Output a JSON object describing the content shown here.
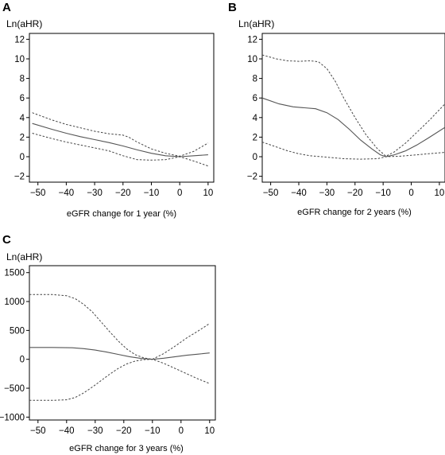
{
  "chart_data": [
    {
      "type": "line",
      "panel_label": "A",
      "ylabel": "Ln(aHR)",
      "xlabel": "eGFR change for 1 year (%)",
      "xlim": [
        -53,
        12
      ],
      "ylim": [
        -2.6,
        12.6
      ],
      "xticks": [
        -50,
        -40,
        -30,
        -20,
        -10,
        0,
        10
      ],
      "yticks": [
        -2,
        0,
        2,
        4,
        6,
        8,
        10,
        12
      ],
      "tick_labels_x": [
        "−50",
        "−40",
        "−30",
        "−20",
        "−10",
        "0",
        "10"
      ],
      "tick_labels_y": [
        "−2",
        "0",
        "2",
        "4",
        "6",
        "8",
        "10",
        "12"
      ],
      "series": [
        {
          "style": "solid",
          "x": [
            -52,
            -45,
            -40,
            -35,
            -30,
            -25,
            -20,
            -15,
            -10,
            -5,
            0,
            5,
            10
          ],
          "y": [
            3.4,
            2.8,
            2.4,
            2.05,
            1.75,
            1.45,
            1.1,
            0.7,
            0.35,
            0.1,
            0.0,
            0.1,
            0.2
          ]
        },
        {
          "style": "dotted",
          "x": [
            -52,
            -45,
            -40,
            -35,
            -30,
            -25,
            -20,
            -18,
            -15,
            -10,
            -5,
            0,
            5,
            10
          ],
          "y": [
            4.5,
            3.75,
            3.3,
            2.95,
            2.6,
            2.35,
            2.2,
            2.0,
            1.5,
            0.8,
            0.35,
            0.05,
            0.55,
            1.4
          ]
        },
        {
          "style": "dotted",
          "x": [
            -52,
            -45,
            -40,
            -35,
            -30,
            -25,
            -20,
            -15,
            -10,
            -5,
            0,
            5,
            10
          ],
          "y": [
            2.4,
            1.85,
            1.5,
            1.2,
            0.9,
            0.6,
            0.1,
            -0.3,
            -0.35,
            -0.3,
            0.0,
            -0.45,
            -0.95
          ]
        }
      ]
    },
    {
      "type": "line",
      "panel_label": "B",
      "ylabel": "Ln(aHR)",
      "xlabel": "eGFR change for 2 years (%)",
      "xlim": [
        -53,
        12
      ],
      "ylim": [
        -2.6,
        12.6
      ],
      "xticks": [
        -50,
        -40,
        -30,
        -20,
        -10,
        0,
        10
      ],
      "yticks": [
        -2,
        0,
        2,
        4,
        6,
        8,
        10,
        12
      ],
      "tick_labels_x": [
        "−50",
        "−40",
        "−30",
        "−20",
        "−10",
        "0",
        "10"
      ],
      "tick_labels_y": [
        "−2",
        "0",
        "2",
        "4",
        "6",
        "8",
        "10",
        "12"
      ],
      "series": [
        {
          "style": "solid",
          "x": [
            -53,
            -47,
            -42,
            -38,
            -34,
            -30,
            -26,
            -22,
            -18,
            -14,
            -11,
            -9,
            -6,
            -2,
            2,
            6,
            12
          ],
          "y": [
            6.0,
            5.4,
            5.1,
            5.0,
            4.9,
            4.5,
            3.8,
            2.8,
            1.7,
            0.8,
            0.2,
            0.0,
            0.2,
            0.6,
            1.2,
            1.9,
            3.0
          ]
        },
        {
          "style": "dotted",
          "x": [
            -53,
            -48,
            -44,
            -40,
            -36,
            -33,
            -30,
            -27,
            -24,
            -20,
            -16,
            -12,
            -9,
            -6,
            -2,
            2,
            6,
            12
          ],
          "y": [
            10.4,
            10.0,
            9.8,
            9.75,
            9.8,
            9.7,
            9.0,
            7.7,
            6.0,
            4.0,
            2.2,
            0.8,
            0.05,
            0.5,
            1.4,
            2.5,
            3.6,
            5.4
          ]
        },
        {
          "style": "dotted",
          "x": [
            -53,
            -48,
            -44,
            -40,
            -36,
            -30,
            -24,
            -18,
            -12,
            -9,
            -4,
            2,
            8,
            12
          ],
          "y": [
            1.5,
            1.0,
            0.6,
            0.3,
            0.1,
            -0.05,
            -0.2,
            -0.25,
            -0.2,
            0.0,
            0.05,
            0.2,
            0.35,
            0.45
          ]
        }
      ]
    },
    {
      "type": "line",
      "panel_label": "C",
      "ylabel": "Ln(aHR)",
      "xlabel": "eGFR change for 3 years (%)",
      "xlim": [
        -53,
        12
      ],
      "ylim": [
        -1050,
        1620
      ],
      "xticks": [
        -50,
        -40,
        -30,
        -20,
        -10,
        0,
        10
      ],
      "yticks": [
        -1000,
        -500,
        0,
        500,
        1000,
        1500
      ],
      "tick_labels_x": [
        "−50",
        "−40",
        "−30",
        "−20",
        "−10",
        "0",
        "10"
      ],
      "tick_labels_y": [
        "−1000",
        "−500",
        "0",
        "500",
        "1000",
        "1500"
      ],
      "series": [
        {
          "style": "solid",
          "x": [
            -53,
            -45,
            -38,
            -34,
            -30,
            -26,
            -22,
            -18,
            -14,
            -10,
            -6,
            -2,
            2,
            6,
            10
          ],
          "y": [
            205,
            205,
            200,
            185,
            160,
            125,
            85,
            45,
            15,
            0,
            20,
            45,
            70,
            90,
            110
          ]
        },
        {
          "style": "dotted",
          "x": [
            -53,
            -45,
            -40,
            -37,
            -34,
            -31,
            -28,
            -25,
            -22,
            -19,
            -16,
            -13,
            -10,
            -6,
            -2,
            2,
            6,
            10
          ],
          "y": [
            1120,
            1120,
            1100,
            1050,
            950,
            820,
            650,
            480,
            320,
            180,
            80,
            25,
            0,
            100,
            230,
            370,
            490,
            620
          ]
        },
        {
          "style": "dotted",
          "x": [
            -53,
            -45,
            -40,
            -37,
            -34,
            -31,
            -28,
            -25,
            -22,
            -19,
            -16,
            -13,
            -10,
            -6,
            -2,
            2,
            6,
            10
          ],
          "y": [
            -710,
            -710,
            -700,
            -660,
            -580,
            -480,
            -370,
            -260,
            -160,
            -80,
            -30,
            -5,
            0,
            -70,
            -160,
            -250,
            -340,
            -420
          ]
        }
      ]
    }
  ]
}
